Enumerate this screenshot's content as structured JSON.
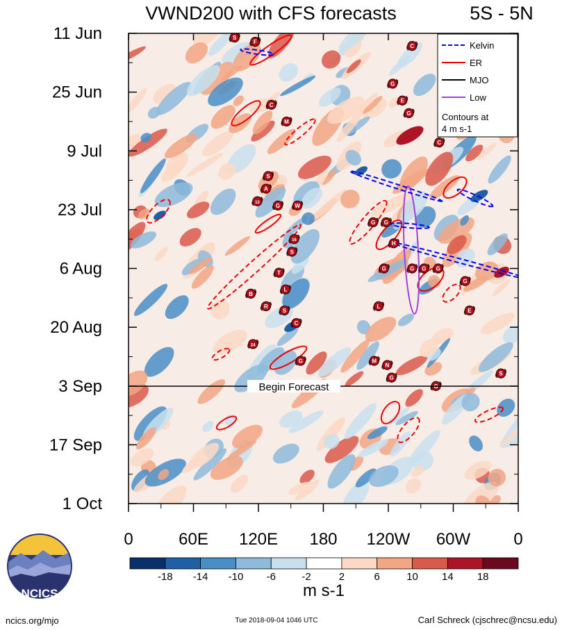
{
  "chart_data": {
    "type": "heatmap",
    "title": "VWND200 with CFS forecasts",
    "subtitle": "5S - 5N",
    "x_ticks": [
      "0",
      "60E",
      "120E",
      "180",
      "120W",
      "60W",
      "0"
    ],
    "x_values": [
      0,
      60,
      120,
      180,
      240,
      300,
      360
    ],
    "xlim": [
      0,
      360
    ],
    "y_ticks": [
      "11 Jun",
      "25 Jun",
      "9 Jul",
      "23 Jul",
      "6 Aug",
      "20 Aug",
      "3 Sep",
      "17 Sep",
      "1 Oct"
    ],
    "y_day_offsets": [
      0,
      14,
      28,
      42,
      56,
      70,
      84,
      98,
      112
    ],
    "ylim": [
      0,
      112
    ],
    "forecast_label": "Begin Forecast",
    "forecast_day_offset": 84,
    "legend": [
      {
        "label": "Kelvin",
        "color": "#0000ee",
        "dashed": true
      },
      {
        "label": "ER",
        "color": "#ee0000",
        "dashed": false
      },
      {
        "label": "MJO",
        "color": "#000000",
        "dashed": false
      },
      {
        "label": "Low",
        "color": "#a040e0",
        "dashed": false
      }
    ],
    "contour_note_1": "Contours at",
    "contour_note_2": "4 m s-1",
    "colorbar": {
      "levels": [
        "-18",
        "-14",
        "-10",
        "-6",
        "-2",
        "2",
        "6",
        "10",
        "14",
        "18"
      ],
      "colors": [
        "#08306b",
        "#1f5fa6",
        "#4a8ec6",
        "#8ebbdc",
        "#c8e0ee",
        "#ffffff",
        "#fbd9c4",
        "#f2a684",
        "#d9594a",
        "#ad1527",
        "#6b0a1e"
      ],
      "units": "m s-1"
    },
    "cyclone_markers": [
      {
        "label": "S",
        "lon": 98,
        "day": 1
      },
      {
        "label": "F",
        "lon": 117,
        "day": 2
      },
      {
        "label": "C",
        "lon": 262,
        "day": 3
      },
      {
        "label": "G",
        "lon": 244,
        "day": 12
      },
      {
        "label": "E",
        "lon": 253,
        "day": 16
      },
      {
        "label": "G",
        "lon": 259,
        "day": 19
      },
      {
        "label": "C",
        "lon": 132,
        "day": 17
      },
      {
        "label": "M",
        "lon": 146,
        "day": 21
      },
      {
        "label": "C",
        "lon": 287,
        "day": 26
      },
      {
        "label": "S",
        "lon": 129,
        "day": 34
      },
      {
        "label": "A",
        "lon": 127,
        "day": 37
      },
      {
        "label": "13",
        "lon": 119,
        "day": 40
      },
      {
        "label": "G",
        "lon": 138,
        "day": 41
      },
      {
        "label": "W",
        "lon": 156,
        "day": 41
      },
      {
        "label": "G",
        "lon": 226,
        "day": 45
      },
      {
        "label": "G",
        "lon": 238,
        "day": 45
      },
      {
        "label": "16",
        "lon": 153,
        "day": 49
      },
      {
        "label": "S",
        "lon": 151,
        "day": 52
      },
      {
        "label": "H",
        "lon": 245,
        "day": 50
      },
      {
        "label": "G",
        "lon": 273,
        "day": 56
      },
      {
        "label": "G",
        "lon": 286,
        "day": 56
      },
      {
        "label": "G",
        "lon": 236,
        "day": 56
      },
      {
        "label": "G",
        "lon": 262,
        "day": 56
      },
      {
        "label": "T",
        "lon": 139,
        "day": 57
      },
      {
        "label": "L",
        "lon": 145,
        "day": 61
      },
      {
        "label": "B",
        "lon": 113,
        "day": 62
      },
      {
        "label": "G",
        "lon": 311,
        "day": 59
      },
      {
        "label": "R",
        "lon": 127,
        "day": 65
      },
      {
        "label": "S",
        "lon": 144,
        "day": 66
      },
      {
        "label": "E",
        "lon": 315,
        "day": 66
      },
      {
        "label": "C",
        "lon": 155,
        "day": 69
      },
      {
        "label": "L",
        "lon": 231,
        "day": 65
      },
      {
        "label": "24",
        "lon": 115,
        "day": 74
      },
      {
        "label": "M",
        "lon": 227,
        "day": 78
      },
      {
        "label": "N",
        "lon": 239,
        "day": 79
      },
      {
        "label": "G",
        "lon": 159,
        "day": 78
      },
      {
        "label": "G",
        "lon": 243,
        "day": 82
      },
      {
        "label": "S",
        "lon": 344,
        "day": 81
      },
      {
        "label": "G",
        "lon": 284,
        "day": 84
      }
    ]
  },
  "footer": {
    "website": "ncics.org/mjo",
    "timestamp": "Tue 2018-09-04 1046 UTC",
    "author": "Carl Schreck (cjschrec@ncsu.edu)",
    "logo_text": "NCICS"
  }
}
